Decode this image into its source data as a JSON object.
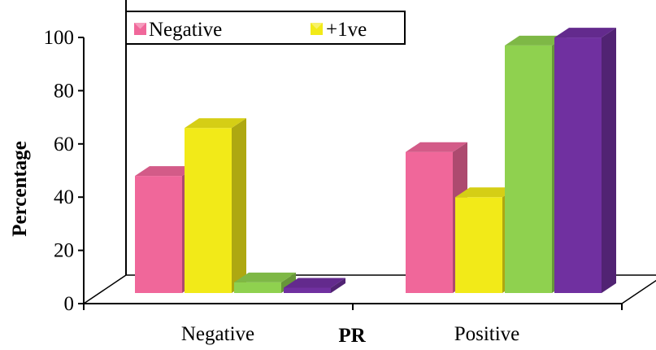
{
  "chart_data": {
    "type": "bar",
    "categories": [
      "Negative",
      "Positive"
    ],
    "xlabel": "PR",
    "ylabel": "Percentage",
    "ylim": [
      0,
      100
    ],
    "yticks": [
      0,
      20,
      40,
      60,
      80,
      100
    ],
    "legend_position": "top-left",
    "grid": false,
    "three_d": true,
    "series": [
      {
        "name": "Negative",
        "color": "#f0679a",
        "values": [
          44,
          53
        ]
      },
      {
        "name": "+1ve",
        "color": "#f2ea18",
        "values": [
          62,
          36
        ]
      },
      {
        "name": "",
        "color": "#8fd14f",
        "values": [
          4,
          93
        ]
      },
      {
        "name": "",
        "color": "#7030a0",
        "values": [
          2,
          96
        ]
      }
    ]
  }
}
